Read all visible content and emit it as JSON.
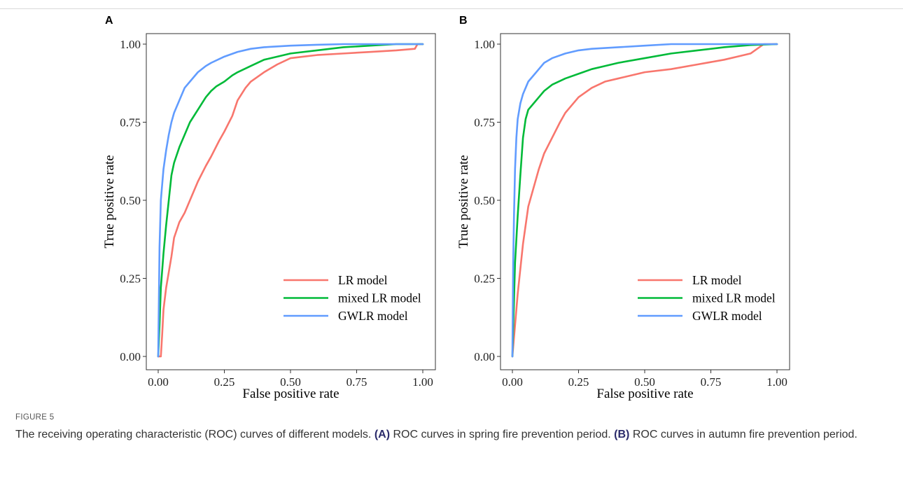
{
  "figure": {
    "label": "FIGURE 5",
    "caption_parts": [
      {
        "text": "The receiving operating characteristic (ROC) curves of different models. ",
        "bold": false
      },
      {
        "text": "(A)",
        "bold": true
      },
      {
        "text": " ROC curves in spring fire prevention period. ",
        "bold": false
      },
      {
        "text": "(B)",
        "bold": true
      },
      {
        "text": " ROC curves in autumn fire prevention period.",
        "bold": false
      }
    ]
  },
  "colors": {
    "LR model": "#F8766D",
    "mixed LR model": "#00BA38",
    "GWLR model": "#619CFF"
  },
  "chart_data": [
    {
      "type": "line",
      "panel": "A",
      "xlabel": "False positive rate",
      "ylabel": "True positive rate",
      "xlim": [
        0,
        1
      ],
      "ylim": [
        0,
        1
      ],
      "xticks": [
        "0.00",
        "0.25",
        "0.50",
        "0.75",
        "1.00"
      ],
      "yticks": [
        "0.00",
        "0.25",
        "0.50",
        "0.75",
        "1.00"
      ],
      "grid": false,
      "legend_position": "bottom-right",
      "series": [
        {
          "name": "LR model",
          "x": [
            0,
            0.01,
            0.015,
            0.02,
            0.03,
            0.05,
            0.06,
            0.08,
            0.1,
            0.12,
            0.15,
            0.18,
            0.2,
            0.23,
            0.25,
            0.28,
            0.3,
            0.33,
            0.35,
            0.4,
            0.45,
            0.5,
            0.55,
            0.6,
            0.7,
            0.8,
            0.9,
            0.97,
            0.98,
            1.0
          ],
          "y": [
            0,
            0,
            0.07,
            0.15,
            0.22,
            0.32,
            0.38,
            0.43,
            0.46,
            0.5,
            0.56,
            0.61,
            0.64,
            0.69,
            0.72,
            0.77,
            0.82,
            0.86,
            0.88,
            0.91,
            0.935,
            0.955,
            0.96,
            0.965,
            0.97,
            0.975,
            0.98,
            0.985,
            1.0,
            1.0
          ]
        },
        {
          "name": "mixed LR model",
          "x": [
            0,
            0.005,
            0.01,
            0.02,
            0.03,
            0.04,
            0.05,
            0.06,
            0.08,
            0.1,
            0.12,
            0.15,
            0.18,
            0.2,
            0.22,
            0.25,
            0.28,
            0.3,
            0.35,
            0.4,
            0.45,
            0.5,
            0.6,
            0.7,
            0.8,
            0.9,
            1.0
          ],
          "y": [
            0,
            0.1,
            0.22,
            0.33,
            0.42,
            0.5,
            0.58,
            0.62,
            0.67,
            0.71,
            0.75,
            0.79,
            0.83,
            0.85,
            0.865,
            0.88,
            0.9,
            0.91,
            0.93,
            0.95,
            0.96,
            0.97,
            0.98,
            0.99,
            0.995,
            1.0,
            1.0
          ]
        },
        {
          "name": "GWLR model",
          "x": [
            0,
            0.005,
            0.01,
            0.02,
            0.03,
            0.04,
            0.05,
            0.06,
            0.08,
            0.1,
            0.12,
            0.15,
            0.18,
            0.2,
            0.25,
            0.3,
            0.35,
            0.4,
            0.5,
            0.6,
            0.7,
            0.8,
            0.9,
            1.0
          ],
          "y": [
            0,
            0.35,
            0.5,
            0.6,
            0.66,
            0.71,
            0.75,
            0.78,
            0.82,
            0.86,
            0.88,
            0.91,
            0.93,
            0.94,
            0.96,
            0.975,
            0.985,
            0.99,
            0.995,
            0.998,
            1.0,
            1.0,
            1.0,
            1.0
          ]
        }
      ]
    },
    {
      "type": "line",
      "panel": "B",
      "xlabel": "False positive rate",
      "ylabel": "True positive rate",
      "xlim": [
        0,
        1
      ],
      "ylim": [
        0,
        1
      ],
      "xticks": [
        "0.00",
        "0.25",
        "0.50",
        "0.75",
        "1.00"
      ],
      "yticks": [
        "0.00",
        "0.25",
        "0.50",
        "0.75",
        "1.00"
      ],
      "grid": false,
      "legend_position": "bottom-right",
      "series": [
        {
          "name": "LR model",
          "x": [
            0,
            0.005,
            0.01,
            0.02,
            0.03,
            0.04,
            0.05,
            0.06,
            0.08,
            0.1,
            0.12,
            0.15,
            0.18,
            0.2,
            0.22,
            0.25,
            0.3,
            0.35,
            0.4,
            0.5,
            0.6,
            0.7,
            0.8,
            0.85,
            0.9,
            0.95,
            1.0
          ],
          "y": [
            0,
            0.05,
            0.1,
            0.2,
            0.28,
            0.36,
            0.42,
            0.48,
            0.54,
            0.6,
            0.65,
            0.7,
            0.75,
            0.78,
            0.8,
            0.83,
            0.86,
            0.88,
            0.89,
            0.91,
            0.92,
            0.935,
            0.95,
            0.96,
            0.97,
            1.0,
            1.0
          ]
        },
        {
          "name": "mixed LR model",
          "x": [
            0,
            0.005,
            0.01,
            0.02,
            0.03,
            0.04,
            0.05,
            0.06,
            0.08,
            0.1,
            0.12,
            0.15,
            0.2,
            0.25,
            0.3,
            0.35,
            0.4,
            0.5,
            0.6,
            0.7,
            0.8,
            0.9,
            1.0
          ],
          "y": [
            0,
            0.15,
            0.3,
            0.45,
            0.58,
            0.7,
            0.76,
            0.79,
            0.81,
            0.83,
            0.85,
            0.87,
            0.89,
            0.905,
            0.92,
            0.93,
            0.94,
            0.955,
            0.97,
            0.98,
            0.99,
            0.997,
            1.0
          ]
        },
        {
          "name": "GWLR model",
          "x": [
            0,
            0.003,
            0.006,
            0.01,
            0.015,
            0.02,
            0.03,
            0.04,
            0.05,
            0.06,
            0.08,
            0.1,
            0.12,
            0.15,
            0.2,
            0.25,
            0.3,
            0.4,
            0.5,
            0.6,
            0.7,
            0.8,
            0.9,
            1.0
          ],
          "y": [
            0,
            0.3,
            0.45,
            0.6,
            0.7,
            0.76,
            0.81,
            0.84,
            0.86,
            0.88,
            0.9,
            0.92,
            0.94,
            0.955,
            0.97,
            0.98,
            0.985,
            0.99,
            0.995,
            1.0,
            1.0,
            1.0,
            1.0,
            1.0
          ]
        }
      ]
    }
  ]
}
